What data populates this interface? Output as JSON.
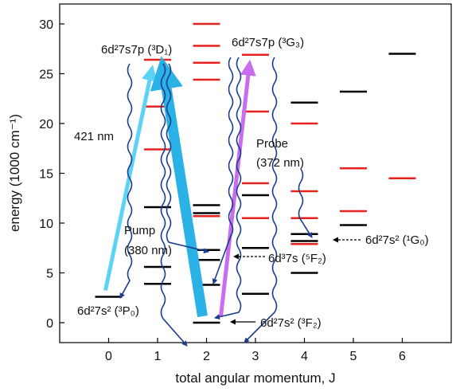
{
  "chart_data": {
    "type": "scatter",
    "xlabel": "total angular momentum, J",
    "ylabel": "energy (1000 cm⁻¹)",
    "xlim": [
      -1,
      7
    ],
    "ylim": [
      -2,
      32
    ],
    "xticks": [
      0,
      1,
      2,
      3,
      4,
      5,
      6
    ],
    "yticks": [
      0,
      5,
      10,
      15,
      20,
      25,
      30
    ],
    "grid": false,
    "legend": "none",
    "series": [
      {
        "color": "#000000",
        "levels": [
          {
            "J": 0,
            "E": 2.6
          },
          {
            "J": 1,
            "E": 3.9
          },
          {
            "J": 1,
            "E": 5.6
          },
          {
            "J": 1,
            "E": 11.6
          },
          {
            "J": 2,
            "E": 0.0
          },
          {
            "J": 2,
            "E": 3.8
          },
          {
            "J": 2,
            "E": 6.3
          },
          {
            "J": 2,
            "E": 7.3
          },
          {
            "J": 2,
            "E": 11.0
          },
          {
            "J": 2,
            "E": 11.8
          },
          {
            "J": 3,
            "E": 2.9
          },
          {
            "J": 3,
            "E": 7.5
          },
          {
            "J": 3,
            "E": 12.8
          },
          {
            "J": 4,
            "E": 5.0
          },
          {
            "J": 4,
            "E": 8.2
          },
          {
            "J": 4,
            "E": 8.9
          },
          {
            "J": 4,
            "E": 22.1
          },
          {
            "J": 5,
            "E": 9.8
          },
          {
            "J": 5,
            "E": 23.2
          },
          {
            "J": 6,
            "E": 27.0
          }
        ]
      },
      {
        "color": "#e8231f",
        "levels": [
          {
            "J": 1,
            "E": 17.4
          },
          {
            "J": 1,
            "E": 21.7
          },
          {
            "J": 1,
            "E": 26.4
          },
          {
            "J": 2,
            "E": 10.7
          },
          {
            "J": 2,
            "E": 24.4
          },
          {
            "J": 2,
            "E": 26.1
          },
          {
            "J": 2,
            "E": 27.8
          },
          {
            "J": 2,
            "E": 30.0
          },
          {
            "J": 3,
            "E": 10.5
          },
          {
            "J": 3,
            "E": 14.0
          },
          {
            "J": 3,
            "E": 21.2
          },
          {
            "J": 3,
            "E": 26.9
          },
          {
            "J": 4,
            "E": 7.9
          },
          {
            "J": 4,
            "E": 10.5
          },
          {
            "J": 4,
            "E": 13.2
          },
          {
            "J": 4,
            "E": 20.0
          },
          {
            "J": 5,
            "E": 11.2
          },
          {
            "J": 5,
            "E": 15.5
          },
          {
            "J": 6,
            "E": 14.5
          }
        ]
      }
    ],
    "transitions": [
      {
        "color": "#5cd3f5",
        "from": {
          "J": 0,
          "E": 2.6
        },
        "to": {
          "J": 1,
          "E": 26.4
        }
      },
      {
        "color": "#2ab1e6",
        "from": {
          "J": 2,
          "E": 0.0
        },
        "to": {
          "J": 1,
          "E": 26.4
        }
      },
      {
        "color": "#c86cf0",
        "from": {
          "J": 2,
          "E": 0.0
        },
        "to": {
          "J": 3,
          "E": 26.9
        }
      }
    ],
    "annotations": {
      "d1": "6d²7s7p (³D₁)",
      "g3": "6d²7s7p (³G₃)",
      "nm421": "421 nm",
      "probe1": "Probe",
      "probe2": "(372 nm)",
      "pump1": "Pump",
      "pump2": "(380 nm)",
      "p0": "6d²7s² (³P₀)",
      "g0": "6d²7s² (¹G₀)",
      "f2b": "6d³7s (⁵F₂)",
      "f2": "6d²7s² (³F₂)"
    }
  }
}
